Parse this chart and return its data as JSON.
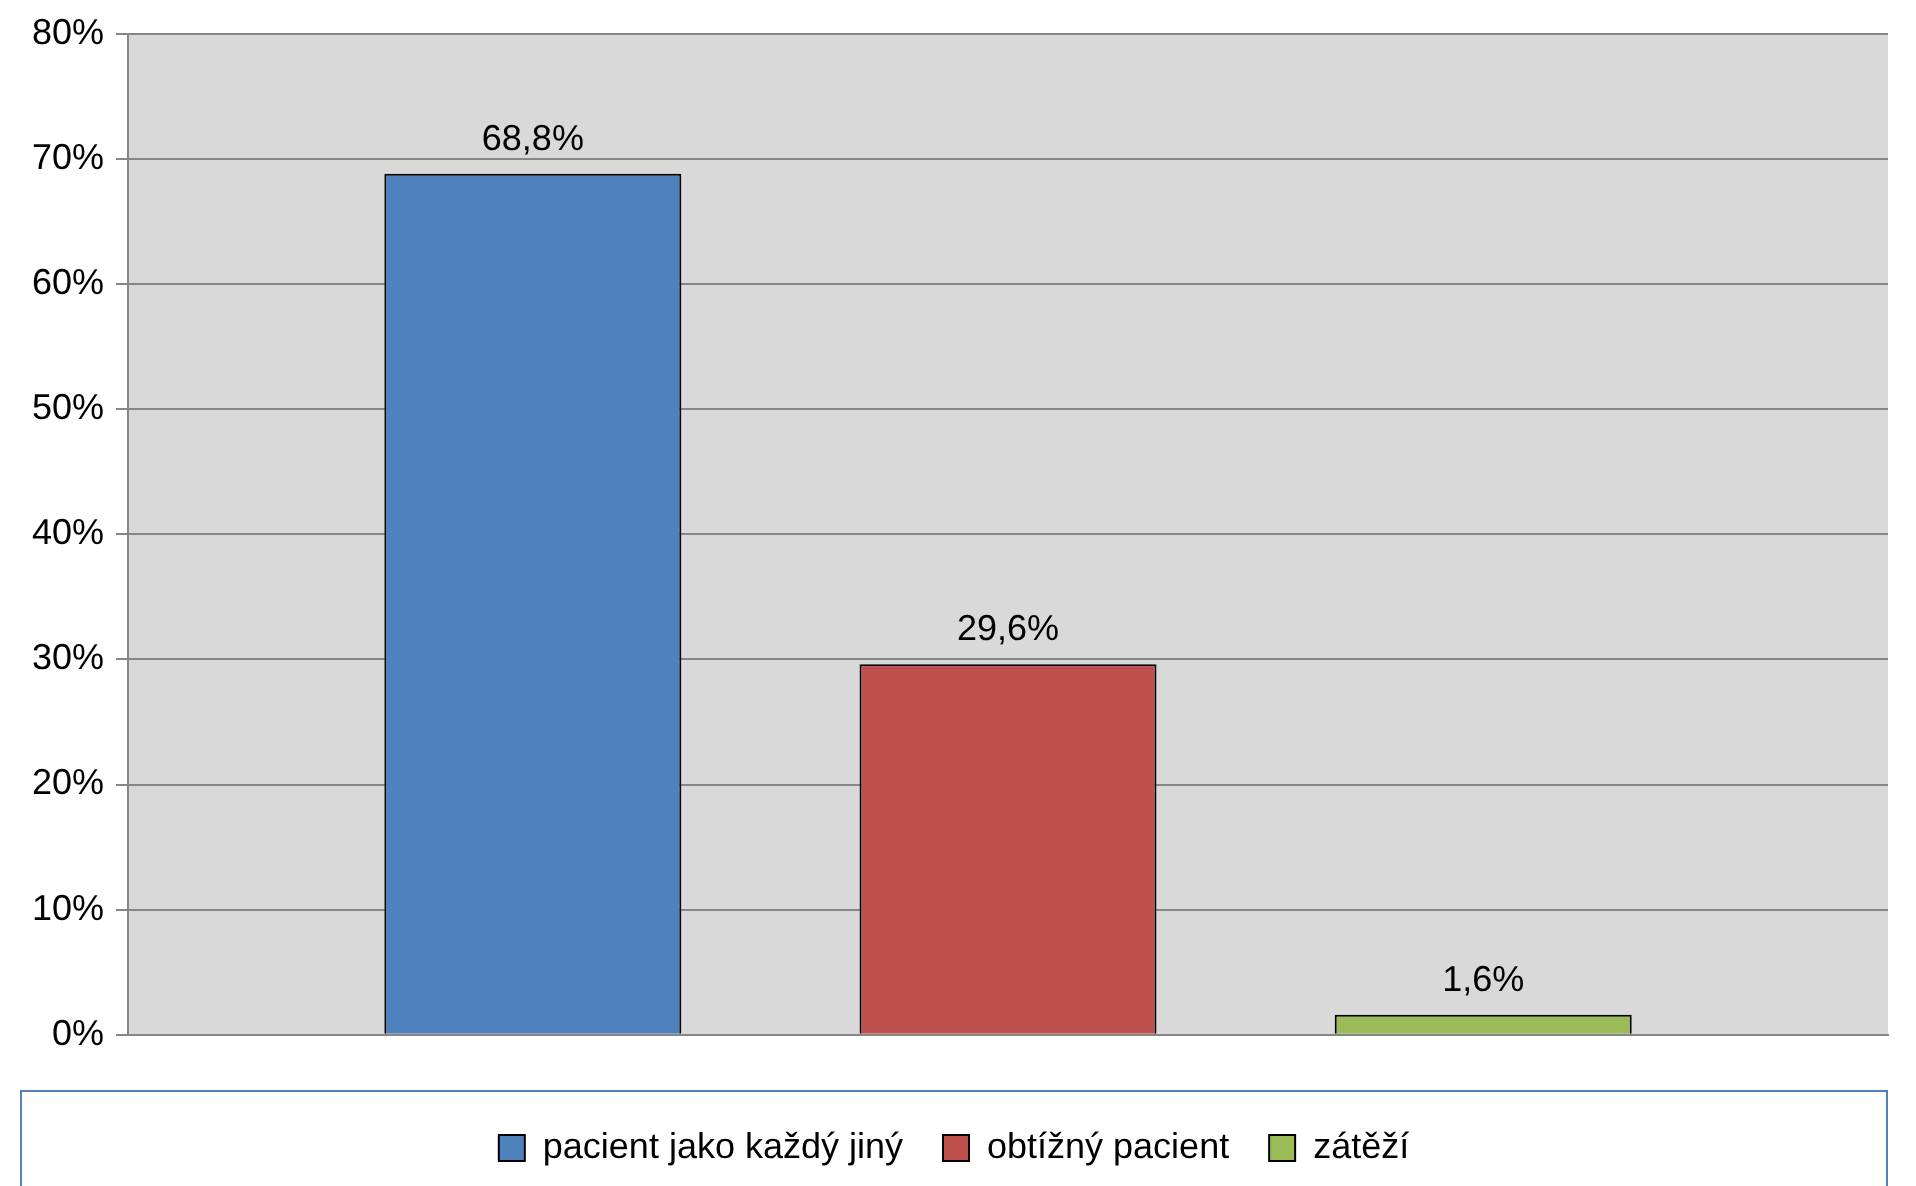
{
  "chart_data": {
    "type": "bar",
    "categories": [
      null
    ],
    "series": [
      {
        "name": "pacient jako každý jiný",
        "color": "#4f81bd",
        "values": [
          68.8
        ],
        "value_labels": [
          "68,8%"
        ]
      },
      {
        "name": "obtížný pacient",
        "color": "#c0504d",
        "values": [
          29.6
        ],
        "value_labels": [
          "29,6%"
        ]
      },
      {
        "name": "zátěží",
        "color": "#9bbb59",
        "values": [
          1.6
        ],
        "value_labels": [
          "1,6%"
        ]
      }
    ],
    "ylim": [
      0,
      80
    ],
    "yticks": [
      {
        "value": 0,
        "label": "0%"
      },
      {
        "value": 10,
        "label": "10%"
      },
      {
        "value": 20,
        "label": "20%"
      },
      {
        "value": 30,
        "label": "30%"
      },
      {
        "value": 40,
        "label": "40%"
      },
      {
        "value": 50,
        "label": "50%"
      },
      {
        "value": 60,
        "label": "60%"
      },
      {
        "value": 70,
        "label": "70%"
      },
      {
        "value": 80,
        "label": "80%"
      }
    ],
    "grid": "y",
    "legend": "bottom"
  }
}
